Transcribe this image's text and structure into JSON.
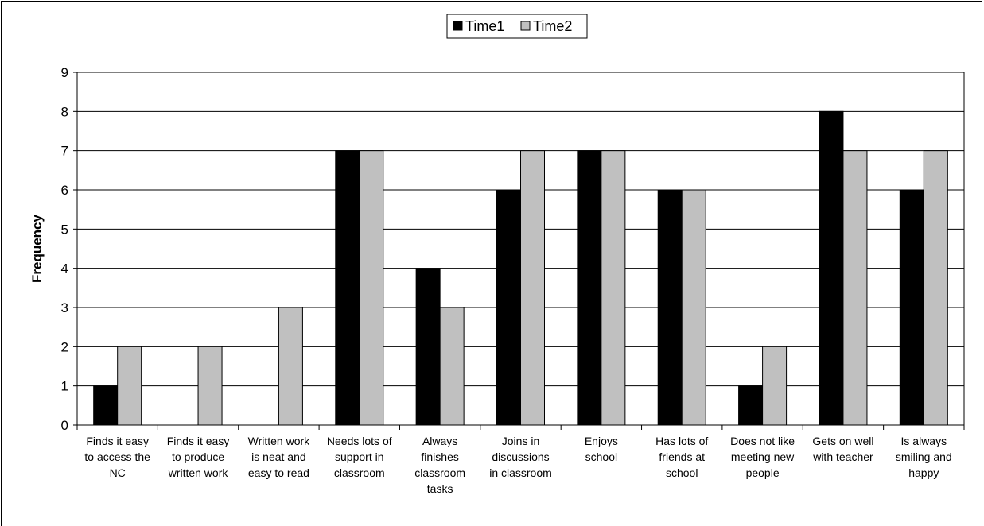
{
  "chart_data": {
    "type": "bar",
    "title": "",
    "xlabel": "",
    "ylabel": "Frequency",
    "ylim": [
      0,
      9
    ],
    "yticks": [
      "0",
      "1",
      "2",
      "3",
      "4",
      "5",
      "6",
      "7",
      "8",
      "9"
    ],
    "grid": true,
    "legend_position": "top-center",
    "categories": [
      [
        "Finds it easy",
        "to access the",
        "NC"
      ],
      [
        "Finds it easy",
        "to produce",
        "written work"
      ],
      [
        "Written work",
        "is neat and",
        "easy to read"
      ],
      [
        "Needs lots of",
        "support in",
        "classroom"
      ],
      [
        "Always",
        "finishes",
        "classroom",
        "tasks"
      ],
      [
        "Joins in",
        "discussions",
        "in classroom"
      ],
      [
        "Enjoys",
        "school"
      ],
      [
        "Has lots of",
        "friends at",
        "school"
      ],
      [
        "Does not like",
        "meeting new",
        "people"
      ],
      [
        "Gets on well",
        "with teacher"
      ],
      [
        "Is always",
        "smiling and",
        "happy"
      ]
    ],
    "series": [
      {
        "name": "Time1",
        "color": "#000000",
        "values": [
          1,
          0,
          0,
          7,
          4,
          6,
          7,
          6,
          1,
          8,
          6
        ]
      },
      {
        "name": "Time2",
        "color": "#c0c0c0",
        "values": [
          2,
          2,
          3,
          7,
          3,
          7,
          7,
          6,
          2,
          7,
          7
        ]
      }
    ]
  }
}
